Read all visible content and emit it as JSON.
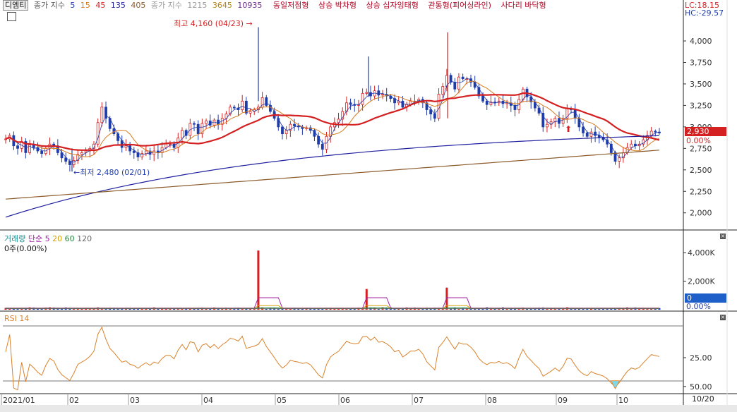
{
  "header": {
    "stock_name": "디엠티",
    "ma_price_label": "종가 지수",
    "ma_price_periods": [
      "5",
      "15",
      "45",
      "135",
      "405"
    ],
    "ma_long_label": "종가 지수",
    "ma_long_periods": [
      "1215",
      "3645",
      "10935"
    ],
    "patterns": [
      "동일저점형",
      "상승 박차형",
      "상승 십자잉태형",
      "관통형(피어싱라인)",
      "사다리 바닥형"
    ],
    "lc": "LC:18.15",
    "hc": "HC:-29.57"
  },
  "price_axis": {
    "ticks": [
      "4,000",
      "3,750",
      "3,500",
      "3,250",
      "3,000",
      "2,750",
      "2,500",
      "2,250",
      "2,000"
    ],
    "current_value": "2,930",
    "current_pct": "0.00%"
  },
  "annotations": {
    "high": "최고 4,160 (04/23)",
    "low": "최저 2,480 (02/01)"
  },
  "volume_pane": {
    "title": "거래량",
    "ma_label": "단순",
    "ma_periods": [
      "5",
      "20",
      "60",
      "120"
    ],
    "sub": "0주(0.00%)",
    "ticks": [
      "4,000K",
      "2,000K"
    ],
    "current_value": "0",
    "current_pct": "0.00%"
  },
  "rsi_pane": {
    "title": "RSI 14",
    "ticks": [
      "50.00",
      "25.00"
    ]
  },
  "x_axis": {
    "labels": [
      "2021/01",
      "02",
      "03",
      "04",
      "05",
      "06",
      "07",
      "08",
      "09",
      "10"
    ],
    "end_label": "10/20"
  },
  "colors": {
    "up": "#d42020",
    "down": "#1f3cab",
    "ma5": "#1f3cab",
    "ma15": "#d97b1e",
    "ma45": "#d42020",
    "ma135": "#1f1fa0",
    "ma405": "#8b5a2b",
    "rsi": "#d9822b",
    "vol_ma5": "#a020a0",
    "vol_ma20": "#d4a000",
    "vol_ma60": "#1a8a3a",
    "vol_ma120": "#666666"
  },
  "chart_data": {
    "type": "candlestick",
    "x_start": "2021/01",
    "x_end": "10/20",
    "ylim": [
      1850,
      4230
    ],
    "yticks": [
      2000,
      2250,
      2500,
      2750,
      3000,
      3250,
      3500,
      3750,
      4000
    ],
    "months": [
      "2021/01",
      "02",
      "03",
      "04",
      "05",
      "06",
      "07",
      "08",
      "09",
      "10"
    ],
    "close_series": [
      2860,
      2900,
      2780,
      2750,
      2830,
      2700,
      2790,
      2760,
      2720,
      2690,
      2750,
      2800,
      2780,
      2700,
      2640,
      2600,
      2560,
      2610,
      2680,
      2700,
      2720,
      2750,
      2800,
      3050,
      3230,
      3100,
      2980,
      2920,
      2840,
      2760,
      2780,
      2720,
      2700,
      2650,
      2690,
      2720,
      2680,
      2720,
      2700,
      2760,
      2800,
      2800,
      2760,
      2870,
      2960,
      2900,
      3040,
      3030,
      2920,
      3040,
      3070,
      3020,
      3080,
      3030,
      3100,
      3150,
      3230,
      3220,
      3200,
      3300,
      3160,
      3180,
      3200,
      3230,
      3340,
      3250,
      3180,
      3100,
      3000,
      2920,
      2960,
      3030,
      3010,
      3000,
      2980,
      2990,
      2960,
      2890,
      2800,
      2740,
      2890,
      3000,
      3050,
      3090,
      3180,
      3280,
      3260,
      3250,
      3260,
      3390,
      3400,
      3360,
      3420,
      3370,
      3380,
      3360,
      3330,
      3280,
      3300,
      3230,
      3260,
      3300,
      3300,
      3320,
      3280,
      3200,
      3150,
      3100,
      3380,
      3470,
      3600,
      3520,
      3440,
      3580,
      3560,
      3560,
      3520,
      3460,
      3360,
      3300,
      3260,
      3290,
      3280,
      3300,
      3270,
      3280,
      3250,
      3200,
      3320,
      3440,
      3350,
      3290,
      3220,
      3160,
      3000,
      3030,
      3060,
      3100,
      3040,
      3100,
      3210,
      3200,
      3100,
      3000,
      2930,
      2890,
      2940,
      2900,
      2880,
      2850,
      2800,
      2700,
      2600,
      2640,
      2700,
      2760,
      2800,
      2780,
      2800,
      2850,
      2900,
      2950,
      2940,
      2930
    ],
    "high": {
      "value": 4160,
      "date": "04/23"
    },
    "low": {
      "value": 2480,
      "date": "02/01"
    },
    "last": 2930,
    "volume_ylim": [
      0,
      4600000
    ],
    "volume_ticks": [
      2000000,
      4000000
    ],
    "rsi_ylim": [
      20,
      80
    ],
    "rsi_ticks": [
      25,
      50
    ]
  }
}
